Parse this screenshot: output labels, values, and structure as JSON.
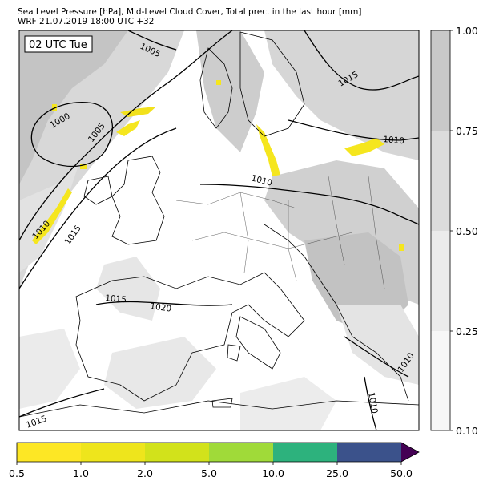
{
  "header": {
    "title_line1": "Sea Level Pressure [hPa], Mid-Level Cloud Cover, Total prec. in the last hour [mm]",
    "title_line2": "WRF 21.07.2019 18:00 UTC +32"
  },
  "map": {
    "time_label": "02 UTC Tue",
    "isobar_labels": [
      "1005",
      "1000",
      "1005",
      "1010",
      "1015",
      "1010",
      "1015",
      "1010",
      "1015",
      "1020",
      "1015",
      "1010",
      "1010"
    ],
    "colors": {
      "land_bg": "#ffffff",
      "cloud_light": "#e6e6e6",
      "cloud_mid": "#d2d2d2",
      "cloud_dark": "#bebebe",
      "precip": "#f5e61e",
      "isobar": "#000000"
    }
  },
  "cloud_cover_colorbar": {
    "ticks": [
      "1.00",
      "0.75",
      "0.50",
      "0.25",
      "0.10"
    ],
    "colors": [
      "#c8c8c8",
      "#dcdcdc",
      "#ebebeb",
      "#f7f7f7"
    ]
  },
  "precip_colorbar": {
    "ticks": [
      "0.5",
      "1.0",
      "2.0",
      "5.0",
      "10.0",
      "25.0",
      "50.0"
    ],
    "colors": [
      "#fde725",
      "#eee51c",
      "#d2e21b",
      "#a0da39",
      "#5ec962",
      "#2db27d",
      "#3b528b"
    ],
    "extend_color": "#440154"
  }
}
